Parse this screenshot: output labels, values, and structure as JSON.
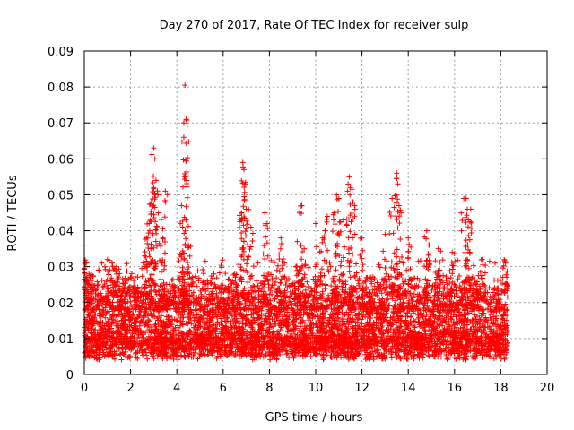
{
  "chart_data": {
    "type": "scatter",
    "title": "Day 270 of 2017, Rate Of TEC Index for receiver sulp",
    "xlabel": "GPS time / hours",
    "ylabel": "ROTI / TECUs",
    "xlim": [
      0,
      20
    ],
    "ylim": [
      0,
      0.09
    ],
    "xticks": [
      0,
      2,
      4,
      6,
      8,
      10,
      12,
      14,
      16,
      18,
      20
    ],
    "xtick_labels": [
      "0",
      "2",
      "4",
      "6",
      "8",
      "10",
      "12",
      "14",
      "16",
      "18",
      "20"
    ],
    "yticks": [
      0,
      0.01,
      0.02,
      0.03,
      0.04,
      0.05,
      0.06,
      0.07,
      0.08,
      0.09
    ],
    "ytick_labels": [
      "0",
      "0.01",
      "0.02",
      "0.03",
      "0.04",
      "0.05",
      "0.06",
      "0.07",
      "0.08",
      "0.09"
    ],
    "grid": true,
    "marker": "+",
    "color": "#ff0000",
    "series": [
      {
        "name": "ROTI",
        "description_of_bulk": "dense band of points between about 0.003 and 0.025 TECU across 0 to 18.3 hours",
        "bulk_range": [
          0.003,
          0.025
        ],
        "time_range": [
          0,
          18.3
        ],
        "x": [
          0.0,
          0.05,
          0.2,
          0.3,
          1.0,
          1.2,
          1.4,
          2.6,
          2.7,
          2.8,
          2.9,
          3.0,
          3.0,
          3.05,
          3.1,
          3.2,
          3.4,
          3.5,
          4.2,
          4.25,
          4.3,
          4.3,
          4.35,
          4.4,
          4.5,
          5.6,
          6.5,
          6.8,
          6.85,
          6.9,
          6.95,
          7.0,
          7.2,
          7.8,
          7.9,
          8.5,
          9.2,
          9.4,
          9.5,
          10.0,
          10.3,
          10.5,
          10.8,
          10.9,
          11.0,
          11.2,
          11.4,
          11.45,
          11.5,
          11.6,
          12.0,
          13.0,
          13.3,
          13.5,
          13.55,
          13.6,
          14.0,
          14.8,
          14.9,
          15.3,
          15.9,
          16.4,
          16.5,
          16.55,
          16.6,
          16.7,
          17.2,
          18.2
        ],
        "y": [
          0.036,
          0.031,
          0.028,
          0.026,
          0.032,
          0.031,
          0.028,
          0.033,
          0.038,
          0.042,
          0.048,
          0.052,
          0.063,
          0.06,
          0.054,
          0.045,
          0.038,
          0.051,
          0.047,
          0.041,
          0.066,
          0.07,
          0.0805,
          0.071,
          0.036,
          0.028,
          0.028,
          0.045,
          0.059,
          0.057,
          0.053,
          0.046,
          0.041,
          0.045,
          0.042,
          0.038,
          0.037,
          0.047,
          0.035,
          0.042,
          0.038,
          0.044,
          0.045,
          0.05,
          0.049,
          0.043,
          0.053,
          0.055,
          0.052,
          0.048,
          0.038,
          0.039,
          0.049,
          0.056,
          0.053,
          0.047,
          0.038,
          0.04,
          0.036,
          0.035,
          0.034,
          0.049,
          0.049,
          0.046,
          0.043,
          0.046,
          0.032,
          0.031
        ]
      }
    ]
  }
}
